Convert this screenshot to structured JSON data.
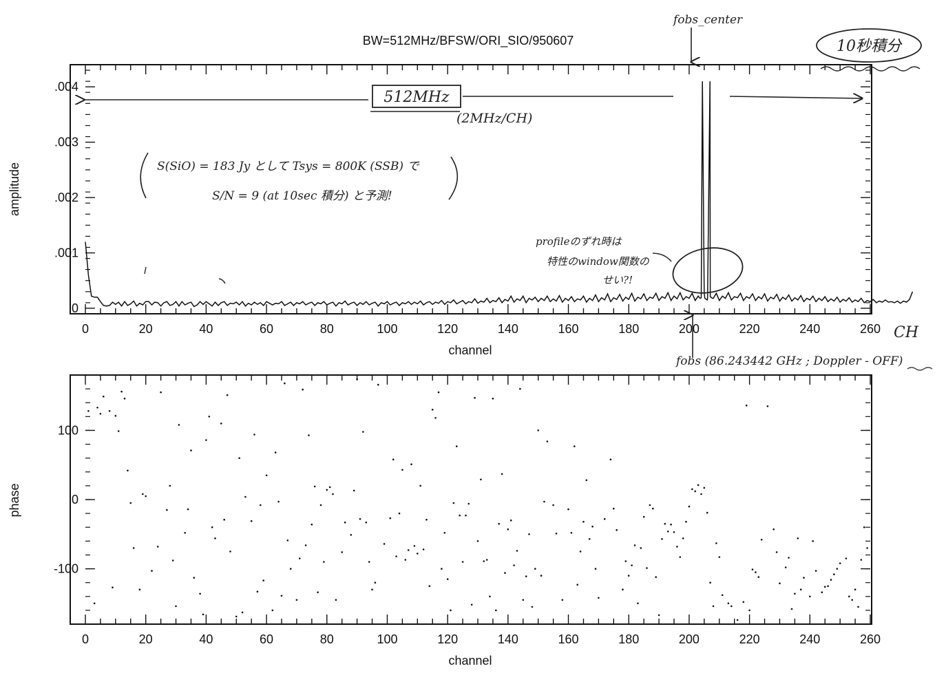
{
  "title": "BW=512MHz/BFSW/ORI_SIO/950607",
  "colors": {
    "ink": "#111111",
    "background": "#ffffff"
  },
  "chart_data": [
    {
      "type": "line",
      "panel": "amplitude",
      "xlabel": "channel",
      "ylabel": "amplitude",
      "xlim": [
        0,
        260
      ],
      "ylim": [
        -0.0001,
        0.0044
      ],
      "x_ticks": [
        "0",
        "20",
        "40",
        "60",
        "80",
        "100",
        "120",
        "140",
        "160",
        "180",
        "200",
        "220",
        "240",
        "260"
      ],
      "y_ticks": [
        {
          "v": 0,
          "label": "0"
        },
        {
          "v": 0.001,
          "label": ".001"
        },
        {
          "v": 0.002,
          "label": ".002"
        },
        {
          "v": 0.003,
          "label": ".003"
        },
        {
          "v": 0.004,
          "label": ".004"
        }
      ],
      "series": [
        {
          "note": "baseline level per channel; sampled every channel",
          "x_start": 0,
          "x_step": 1,
          "y": [
            0.0012,
            0.0006,
            0.00022,
            0.0002,
            0.0002,
            0.00012,
            5e-05,
            4e-05,
            5e-05,
            0.00011,
            7e-05,
            0.00011,
            4e-05,
            0.00012,
            5e-05,
            8e-05,
            0.00013,
            4e-05,
            9e-05,
            6e-05,
            0.00012,
            0.00012,
            6e-05,
            0.00011,
            0.0001,
            4e-05,
            0.0001,
            0.00012,
            5e-05,
            7e-05,
            0.00012,
            4e-05,
            0.00012,
            6e-05,
            9e-05,
            0.00011,
            3e-05,
            6e-05,
            0.00012,
            7e-05,
            0.00012,
            8e-05,
            4e-05,
            0.00011,
            5e-05,
            0.0001,
            0.00012,
            5e-05,
            9e-05,
            8e-05,
            0.00011,
            6e-05,
            0.00012,
            4e-05,
            9e-05,
            6e-05,
            0.00011,
            7e-05,
            0.0001,
            5e-05,
            0.00012,
            9e-05,
            6e-05,
            9e-05,
            8e-05,
            0.00012,
            5e-05,
            8e-05,
            0.00011,
            5e-05,
            0.0001,
            8e-05,
            0.00012,
            6e-05,
            9e-05,
            0.00011,
            5e-05,
            0.0001,
            8e-05,
            0.00012,
            6e-05,
            9e-05,
            0.00011,
            4e-05,
            0.0001,
            8e-05,
            0.00013,
            6e-05,
            9e-05,
            0.00011,
            5e-05,
            0.0001,
            7e-05,
            0.00012,
            6e-05,
            9e-05,
            0.00011,
            4e-05,
            0.0001,
            8e-05,
            0.00012,
            6e-05,
            9e-05,
            0.00011,
            5e-05,
            0.0001,
            8e-05,
            0.00012,
            7e-05,
            0.00011,
            8e-05,
            0.00013,
            6e-05,
            0.0001,
            0.00012,
            7e-05,
            0.00011,
            9e-05,
            0.00014,
            7e-05,
            0.00012,
            0.0001,
            0.00015,
            8e-05,
            0.00011,
            0.00014,
            8e-05,
            0.00012,
            0.0001,
            0.00017,
            9e-05,
            0.00013,
            0.00011,
            0.00018,
            0.0001,
            0.00014,
            0.00012,
            0.00019,
            0.0001,
            0.00016,
            0.00013,
            0.00022,
            0.00011,
            0.00017,
            0.00014,
            0.00022,
            0.0001,
            0.00018,
            0.00015,
            0.0002,
            0.00012,
            0.00018,
            0.00014,
            0.00022,
            0.00012,
            0.00017,
            0.00013,
            0.00023,
            0.00011,
            0.00018,
            0.00014,
            0.00021,
            0.00012,
            0.00017,
            0.00015,
            0.00022,
            0.00011,
            0.00018,
            0.00014,
            0.00024,
            0.00012,
            0.00019,
            0.00015,
            0.00026,
            0.00012,
            0.00019,
            0.00016,
            0.00025,
            0.00013,
            0.0002,
            0.00016,
            0.00027,
            0.00013,
            0.0002,
            0.00017,
            0.00026,
            0.00014,
            0.0002,
            0.00018,
            0.00027,
            0.00014,
            0.00021,
            0.00018,
            0.00028,
            0.00014,
            0.00022,
            0.00017,
            0.00028,
            0.00015,
            0.00021,
            0.00018,
            0.00027,
            0.00014,
            0.00022,
            0.00019,
            0.00028,
            0.00015,
            0.00021,
            0.00018,
            0.00027,
            0.00014,
            0.00022,
            0.00018,
            0.00028,
            0.00015,
            0.00021,
            0.00019,
            0.00027,
            0.00014,
            0.00021,
            0.00018,
            0.00026,
            0.00014,
            0.00021,
            0.00017,
            0.00026,
            0.00013,
            0.0002,
            0.00017,
            0.00025,
            0.00013,
            0.0002,
            0.00016,
            0.00024,
            0.00013,
            0.00019,
            0.00015,
            0.00023,
            0.00012,
            0.00018,
            0.00015,
            0.00022,
            0.00012,
            0.00018,
            0.00014,
            0.00021,
            0.00012,
            0.00017,
            0.00013,
            0.0002,
            0.00011,
            0.00016,
            0.00013,
            0.00019,
            0.00011,
            0.00015,
            0.00012,
            0.00018,
            0.0001,
            0.00014,
            0.00012,
            0.00016,
            0.0001,
            0.00013,
            0.00011,
            0.00015,
            0.00011,
            0.00012,
            0.0001,
            0.00013,
            9e-05,
            0.00013,
            0.00011,
            0.00016,
            0.0003
          ],
          "peaks": [
            {
              "x": 204.4,
              "y": 0.0041
            },
            {
              "x": 206.9,
              "y": 0.0041
            }
          ]
        }
      ]
    },
    {
      "type": "scatter",
      "panel": "phase",
      "xlabel": "channel",
      "ylabel": "phase",
      "xlim": [
        0,
        260
      ],
      "ylim": [
        -180,
        180
      ],
      "x_ticks": [
        "0",
        "20",
        "40",
        "60",
        "80",
        "100",
        "120",
        "140",
        "160",
        "180",
        "200",
        "220",
        "240",
        "260"
      ],
      "y_ticks": [
        {
          "v": 100,
          "label": "100"
        },
        {
          "v": 0,
          "label": "0"
        },
        {
          "v": -100,
          "label": "-100"
        }
      ],
      "points": [
        [
          1,
          128
        ],
        [
          3,
          -150
        ],
        [
          4,
          133
        ],
        [
          5,
          124
        ],
        [
          6,
          149
        ],
        [
          8,
          128
        ],
        [
          9,
          -127
        ],
        [
          10,
          121
        ],
        [
          11,
          99
        ],
        [
          12,
          156
        ],
        [
          13,
          146
        ],
        [
          14,
          42
        ],
        [
          15,
          -5
        ],
        [
          16,
          -70
        ],
        [
          18,
          -130
        ],
        [
          19,
          8
        ],
        [
          20,
          5
        ],
        [
          22,
          -103
        ],
        [
          24,
          -68
        ],
        [
          25,
          155
        ],
        [
          27,
          -15
        ],
        [
          28,
          20
        ],
        [
          29,
          -88
        ],
        [
          30,
          -154
        ],
        [
          31,
          108
        ],
        [
          33,
          -48
        ],
        [
          34,
          -14
        ],
        [
          35,
          71
        ],
        [
          36,
          -113
        ],
        [
          38,
          -136
        ],
        [
          39,
          -166
        ],
        [
          40,
          86
        ],
        [
          41,
          120
        ],
        [
          42,
          -40
        ],
        [
          43,
          -56
        ],
        [
          45,
          110
        ],
        [
          46,
          -29
        ],
        [
          47,
          151
        ],
        [
          48,
          -75
        ],
        [
          50,
          -169
        ],
        [
          51,
          60
        ],
        [
          52,
          -163
        ],
        [
          53,
          4
        ],
        [
          55,
          -31
        ],
        [
          56,
          94
        ],
        [
          57,
          -133
        ],
        [
          58,
          -8
        ],
        [
          59,
          -117
        ],
        [
          60,
          35
        ],
        [
          62,
          -160
        ],
        [
          63,
          68
        ],
        [
          64,
          -3
        ],
        [
          65,
          -139
        ],
        [
          66,
          168
        ],
        [
          67,
          -59
        ],
        [
          68,
          -100
        ],
        [
          70,
          -145
        ],
        [
          71,
          -85
        ],
        [
          72,
          159
        ],
        [
          73,
          -66
        ],
        [
          74,
          93
        ],
        [
          75,
          -36
        ],
        [
          76,
          19
        ],
        [
          77,
          -134
        ],
        [
          78,
          -8
        ],
        [
          79,
          -90
        ],
        [
          80,
          14
        ],
        [
          81,
          18
        ],
        [
          82,
          8
        ],
        [
          83,
          -145
        ],
        [
          85,
          -76
        ],
        [
          86,
          -33
        ],
        [
          88,
          -51
        ],
        [
          89,
          13
        ],
        [
          90,
          174
        ],
        [
          91,
          -28
        ],
        [
          92,
          98
        ],
        [
          93,
          -33
        ],
        [
          94,
          -90
        ],
        [
          95,
          -130
        ],
        [
          96,
          -120
        ],
        [
          97,
          166
        ],
        [
          99,
          -64
        ],
        [
          101,
          -27
        ],
        [
          102,
          58
        ],
        [
          103,
          -82
        ],
        [
          104,
          -20
        ],
        [
          105,
          43
        ],
        [
          106,
          -87
        ],
        [
          107,
          -73
        ],
        [
          108,
          51
        ],
        [
          109,
          -67
        ],
        [
          110,
          -78
        ],
        [
          111,
          20
        ],
        [
          112,
          -72
        ],
        [
          113,
          -29
        ],
        [
          114,
          -125
        ],
        [
          115,
          130
        ],
        [
          116,
          118
        ],
        [
          117,
          155
        ],
        [
          118,
          -100
        ],
        [
          119,
          -48
        ],
        [
          120,
          -115
        ],
        [
          121,
          -160
        ],
        [
          122,
          -5
        ],
        [
          123,
          77
        ],
        [
          124,
          -23
        ],
        [
          125,
          -90
        ],
        [
          126,
          -23
        ],
        [
          127,
          -6
        ],
        [
          128,
          -152
        ],
        [
          129,
          147
        ],
        [
          130,
          -60
        ],
        [
          131,
          29
        ],
        [
          132,
          -89
        ],
        [
          133,
          -87
        ],
        [
          134,
          -140
        ],
        [
          135,
          146
        ],
        [
          136,
          -160
        ],
        [
          137,
          -35
        ],
        [
          138,
          37
        ],
        [
          139,
          -106
        ],
        [
          140,
          -43
        ],
        [
          141,
          -30
        ],
        [
          142,
          -95
        ],
        [
          143,
          -74
        ],
        [
          144,
          160
        ],
        [
          145,
          -145
        ],
        [
          146,
          -111
        ],
        [
          147,
          -50
        ],
        [
          148,
          -155
        ],
        [
          149,
          -100
        ],
        [
          150,
          100
        ],
        [
          151,
          -110
        ],
        [
          152,
          -3
        ],
        [
          153,
          84
        ],
        [
          155,
          -8
        ],
        [
          156,
          -49
        ],
        [
          158,
          -145
        ],
        [
          160,
          -14
        ],
        [
          161,
          -48
        ],
        [
          162,
          77
        ],
        [
          163,
          -123
        ],
        [
          164,
          -75
        ],
        [
          165,
          -32
        ],
        [
          166,
          28
        ],
        [
          167,
          -57
        ],
        [
          168,
          -39
        ],
        [
          169,
          -100
        ],
        [
          170,
          -142
        ],
        [
          172,
          -28
        ],
        [
          174,
          58
        ],
        [
          175,
          -13
        ],
        [
          176,
          -44
        ],
        [
          178,
          -130
        ],
        [
          179,
          -89
        ],
        [
          180,
          -110
        ],
        [
          181,
          -95
        ],
        [
          182,
          -66
        ],
        [
          183,
          -150
        ],
        [
          184,
          -70
        ],
        [
          185,
          -25
        ],
        [
          186,
          -99
        ],
        [
          187,
          -8
        ],
        [
          188,
          -13
        ],
        [
          189,
          -112
        ],
        [
          190,
          -167
        ],
        [
          191,
          -57
        ],
        [
          192,
          -35
        ],
        [
          193,
          -46
        ],
        [
          194,
          -36
        ],
        [
          195,
          -47
        ],
        [
          196,
          -68
        ],
        [
          197,
          -83
        ],
        [
          198,
          -56
        ],
        [
          199,
          -32
        ],
        [
          200,
          -10
        ],
        [
          201,
          15
        ],
        [
          202,
          12
        ],
        [
          203,
          21
        ],
        [
          204,
          8
        ],
        [
          205,
          17
        ],
        [
          206,
          -19
        ],
        [
          207,
          -120
        ],
        [
          208,
          -154
        ],
        [
          209,
          -63
        ],
        [
          210,
          -83
        ],
        [
          211,
          -138
        ],
        [
          213,
          -150
        ],
        [
          214,
          -154
        ],
        [
          216,
          -174
        ],
        [
          218,
          -148
        ],
        [
          219,
          136
        ],
        [
          220,
          -160
        ],
        [
          221,
          -101
        ],
        [
          222,
          -105
        ],
        [
          223,
          -112
        ],
        [
          224,
          -58
        ],
        [
          226,
          135
        ],
        [
          228,
          -43
        ],
        [
          229,
          -76
        ],
        [
          230,
          -121
        ],
        [
          232,
          -98
        ],
        [
          233,
          -84
        ],
        [
          234,
          -158
        ],
        [
          235,
          -136
        ],
        [
          236,
          -56
        ],
        [
          237,
          -130
        ],
        [
          238,
          -113
        ],
        [
          240,
          -140
        ],
        [
          241,
          -60
        ],
        [
          242,
          -103
        ],
        [
          244,
          -134
        ],
        [
          245,
          -126
        ],
        [
          246,
          -125
        ],
        [
          247,
          -116
        ],
        [
          248,
          -108
        ],
        [
          249,
          -100
        ],
        [
          250,
          -92
        ],
        [
          252,
          -85
        ],
        [
          253,
          -140
        ],
        [
          254,
          -145
        ],
        [
          255,
          -130
        ],
        [
          256,
          -155
        ],
        [
          257,
          -87
        ],
        [
          258,
          -40
        ],
        [
          259,
          -70
        ]
      ]
    }
  ],
  "annotations": {
    "fobs_center": "fobs_center",
    "integration_box": "10秒積分",
    "bandwidth_box": "512MHz",
    "channel_width": "(2MHz/CH)",
    "estimate_line1": "S(SiO) = 183 Jy として  Tsys = 800K (SSB) で",
    "estimate_line2": "S/N = 9 (at 10sec 積分) と予測!",
    "profile_note_line1": "profileのずれ時は",
    "profile_note_line2": "特性のwindow関数の",
    "profile_note_line3": "せい?!",
    "ch_unit": "CH",
    "fobs_freq": "fobs (86.243442 GHz ; Doppler - OFF)"
  }
}
